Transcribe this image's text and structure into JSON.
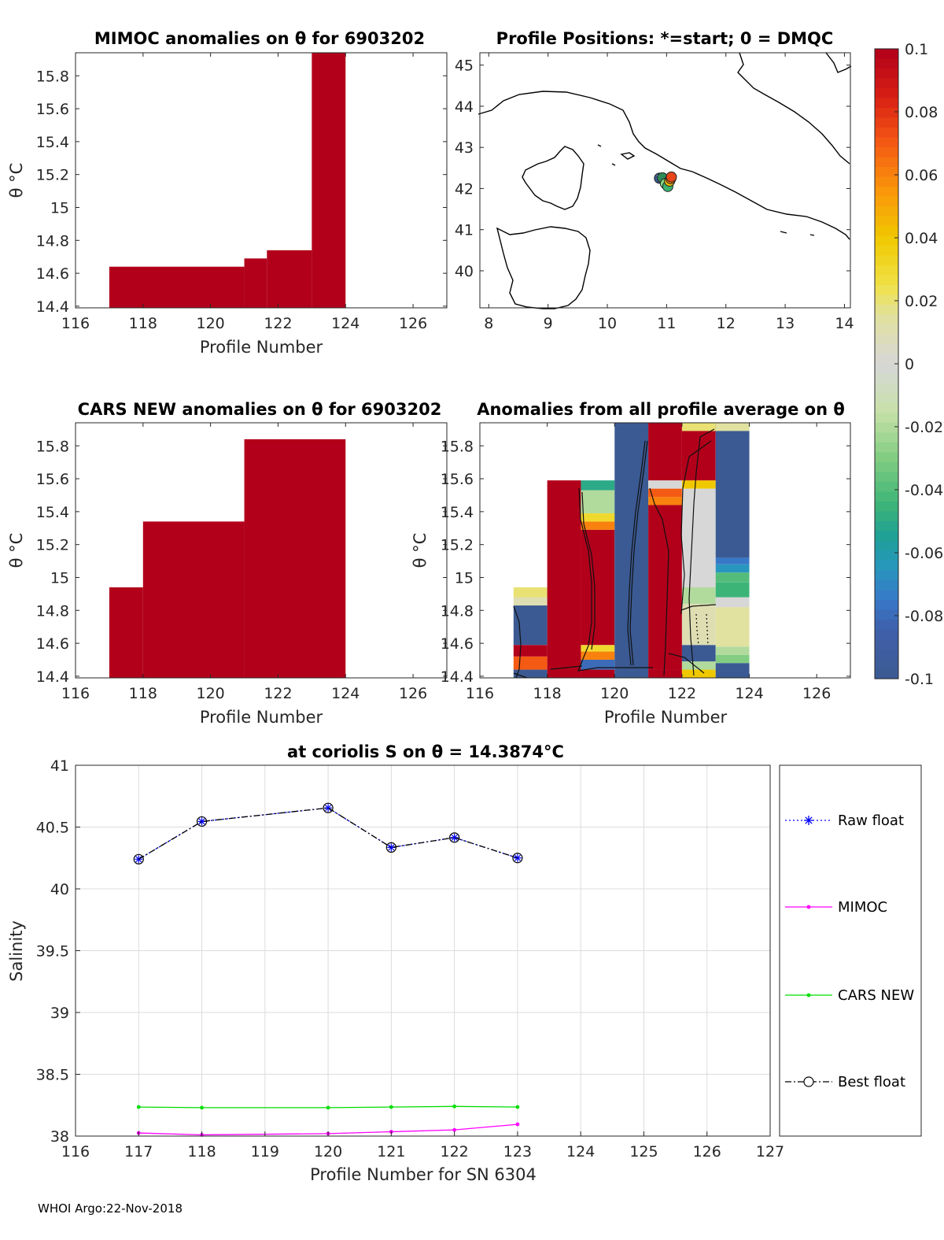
{
  "footer": "WHOI Argo:22-Nov-2018",
  "colors": {
    "raw": "#0000ff",
    "mimoc": "#ff00ff",
    "cars": "#00dd00",
    "best": "#000000",
    "anom_red": "#b2001b",
    "anom_blue": "#3b5a93",
    "coast": "#000000",
    "grid": "#dcdcdc"
  },
  "panels": {
    "mimoc": {
      "title": "MIMOC anomalies on θ  for 6903202",
      "ylabel": "θ °C",
      "xlabel": "Profile Number"
    },
    "positions": {
      "title": "Profile Positions: *=start; 0 = DMQC"
    },
    "cars": {
      "title": "CARS NEW anomalies on θ for 6903202",
      "ylabel": "θ °C",
      "xlabel": "Profile Number"
    },
    "allavg": {
      "title": "Anomalies from all profile average on θ",
      "ylabel": "θ °C",
      "xlabel": "Profile Number"
    },
    "salinity": {
      "title": "at coriolis S on θ = 14.3874°C",
      "ylabel": "Salinity",
      "xlabel": "Profile Number for SN 6304"
    }
  },
  "legend": [
    {
      "label": "Raw float",
      "style": "raw"
    },
    {
      "label": "MIMOC",
      "style": "mimoc"
    },
    {
      "label": "CARS NEW",
      "style": "cars"
    },
    {
      "label": "Best float",
      "style": "best"
    }
  ],
  "chart_data": [
    {
      "id": "mimoc",
      "type": "heatmap",
      "title": "MIMOC anomalies on θ  for 6903202",
      "xlabel": "Profile Number",
      "ylabel": "θ °C",
      "xlim": [
        116,
        127
      ],
      "ylim": [
        14.39,
        15.94
      ],
      "xticks": [
        116,
        118,
        120,
        122,
        124,
        126
      ],
      "yticks": [
        14.4,
        14.6,
        14.8,
        15,
        15.2,
        15.4,
        15.6,
        15.8
      ],
      "cells": [
        {
          "x0": 117,
          "x1": 121,
          "y0": 14.39,
          "y1": 14.64,
          "value": 0.1
        },
        {
          "x0": 121,
          "x1": 121.67,
          "y0": 14.39,
          "y1": 14.69,
          "value": 0.1
        },
        {
          "x0": 121.67,
          "x1": 123,
          "y0": 14.39,
          "y1": 14.74,
          "value": 0.1
        },
        {
          "x0": 123,
          "x1": 124,
          "y0": 14.39,
          "y1": 15.94,
          "value": 0.1
        }
      ]
    },
    {
      "id": "positions",
      "type": "scatter",
      "title": "Profile Positions: *=start; 0 = DMQC",
      "xlim": [
        7.85,
        14.1
      ],
      "ylim": [
        39.1,
        45.3
      ],
      "xticks": [
        8,
        9,
        10,
        11,
        12,
        13,
        14
      ],
      "yticks": [
        40,
        41,
        42,
        43,
        44,
        45
      ],
      "points": [
        {
          "lon": 10.88,
          "lat": 42.25,
          "color": "#3b5a93",
          "marker": "start"
        },
        {
          "lon": 10.93,
          "lat": 42.26,
          "color": "#2e8b57"
        },
        {
          "lon": 10.98,
          "lat": 42.12,
          "color": "#7fd67f"
        },
        {
          "lon": 11.02,
          "lat": 42.05,
          "color": "#3cb371"
        },
        {
          "lon": 11.05,
          "lat": 42.18,
          "color": "#f0c000"
        },
        {
          "lon": 11.07,
          "lat": 42.24,
          "color": "#ff8c00"
        },
        {
          "lon": 11.08,
          "lat": 42.28,
          "color": "#e8461a"
        }
      ]
    },
    {
      "id": "cars",
      "type": "heatmap",
      "title": "CARS NEW anomalies on θ for 6903202",
      "xlabel": "Profile Number",
      "ylabel": "θ °C",
      "xlim": [
        116,
        127
      ],
      "ylim": [
        14.39,
        15.94
      ],
      "xticks": [
        116,
        118,
        120,
        122,
        124,
        126
      ],
      "yticks": [
        14.4,
        14.6,
        14.8,
        15,
        15.2,
        15.4,
        15.6,
        15.8
      ],
      "cells": [
        {
          "x0": 117,
          "x1": 118,
          "y0": 14.39,
          "y1": 14.94,
          "value": 0.1
        },
        {
          "x0": 118,
          "x1": 121,
          "y0": 14.39,
          "y1": 15.34,
          "value": 0.1
        },
        {
          "x0": 121,
          "x1": 124,
          "y0": 14.39,
          "y1": 15.84,
          "value": 0.1
        }
      ]
    },
    {
      "id": "allavg",
      "type": "heatmap",
      "title": "Anomalies from all profile average on θ",
      "xlabel": "Profile Number",
      "ylabel": "θ °C",
      "xlim": [
        116,
        127
      ],
      "ylim": [
        14.39,
        15.94
      ],
      "xticks": [
        116,
        118,
        120,
        122,
        124,
        126
      ],
      "yticks": [
        14.4,
        14.6,
        14.8,
        15,
        15.2,
        15.4,
        15.6,
        15.8
      ],
      "cells": [
        {
          "x0": 117,
          "x1": 118,
          "y0": 14.39,
          "y1": 14.44,
          "value": -0.1
        },
        {
          "x0": 117,
          "x1": 118,
          "y0": 14.44,
          "y1": 14.52,
          "value": 0.07
        },
        {
          "x0": 117,
          "x1": 118,
          "y0": 14.52,
          "y1": 14.59,
          "value": 0.1
        },
        {
          "x0": 117,
          "x1": 118,
          "y0": 14.59,
          "y1": 14.83,
          "value": -0.1
        },
        {
          "x0": 117,
          "x1": 118,
          "y0": 14.83,
          "y1": 14.88,
          "value": 0.01
        },
        {
          "x0": 117,
          "x1": 118,
          "y0": 14.88,
          "y1": 14.94,
          "value": 0.02
        },
        {
          "x0": 118,
          "x1": 119,
          "y0": 14.39,
          "y1": 15.59,
          "value": 0.1
        },
        {
          "x0": 119,
          "x1": 120,
          "y0": 14.39,
          "y1": 14.44,
          "value": 0.1
        },
        {
          "x0": 119,
          "x1": 120,
          "y0": 14.44,
          "y1": 14.5,
          "value": -0.08
        },
        {
          "x0": 119,
          "x1": 120,
          "y0": 14.5,
          "y1": 14.55,
          "value": 0.06
        },
        {
          "x0": 119,
          "x1": 120,
          "y0": 14.55,
          "y1": 14.59,
          "value": 0.03
        },
        {
          "x0": 119,
          "x1": 120,
          "y0": 14.59,
          "y1": 15.29,
          "value": 0.1
        },
        {
          "x0": 119,
          "x1": 120,
          "y0": 15.29,
          "y1": 15.34,
          "value": 0.06
        },
        {
          "x0": 119,
          "x1": 120,
          "y0": 15.34,
          "y1": 15.39,
          "value": 0.03
        },
        {
          "x0": 119,
          "x1": 120,
          "y0": 15.39,
          "y1": 15.53,
          "value": -0.02
        },
        {
          "x0": 119,
          "x1": 120,
          "y0": 15.53,
          "y1": 15.59,
          "value": -0.05
        },
        {
          "x0": 120,
          "x1": 121,
          "y0": 14.39,
          "y1": 15.94,
          "value": -0.1
        },
        {
          "x0": 121,
          "x1": 122,
          "y0": 14.39,
          "y1": 14.44,
          "value": 0.1
        },
        {
          "x0": 121,
          "x1": 122,
          "y0": 14.44,
          "y1": 15.44,
          "value": 0.1
        },
        {
          "x0": 121,
          "x1": 122,
          "y0": 15.44,
          "y1": 15.49,
          "value": 0.06
        },
        {
          "x0": 121,
          "x1": 122,
          "y0": 15.49,
          "y1": 15.54,
          "value": 0.07
        },
        {
          "x0": 121,
          "x1": 122,
          "y0": 15.54,
          "y1": 15.59,
          "value": 0.0
        },
        {
          "x0": 121,
          "x1": 122,
          "y0": 15.59,
          "y1": 15.94,
          "value": 0.1
        },
        {
          "x0": 122,
          "x1": 123,
          "y0": 14.39,
          "y1": 14.44,
          "value": 0.04
        },
        {
          "x0": 122,
          "x1": 123,
          "y0": 14.44,
          "y1": 14.49,
          "value": -0.02
        },
        {
          "x0": 122,
          "x1": 123,
          "y0": 14.49,
          "y1": 14.59,
          "value": -0.1
        },
        {
          "x0": 122,
          "x1": 123,
          "y0": 14.59,
          "y1": 14.84,
          "value": 0.01
        },
        {
          "x0": 122,
          "x1": 123,
          "y0": 14.84,
          "y1": 14.94,
          "value": -0.02
        },
        {
          "x0": 122,
          "x1": 123,
          "y0": 14.94,
          "y1": 15.54,
          "value": 0.0
        },
        {
          "x0": 122,
          "x1": 123,
          "y0": 15.54,
          "y1": 15.59,
          "value": 0.04
        },
        {
          "x0": 122,
          "x1": 123,
          "y0": 15.59,
          "y1": 15.94,
          "value": 0.1
        },
        {
          "x0": 122,
          "x1": 123,
          "y0": 15.89,
          "y1": 15.94,
          "value": 0.02
        },
        {
          "x0": 123,
          "x1": 124,
          "y0": 14.39,
          "y1": 14.48,
          "value": -0.1
        },
        {
          "x0": 123,
          "x1": 124,
          "y0": 14.48,
          "y1": 14.53,
          "value": -0.03
        },
        {
          "x0": 123,
          "x1": 124,
          "y0": 14.53,
          "y1": 14.58,
          "value": -0.02
        },
        {
          "x0": 123,
          "x1": 124,
          "y0": 14.58,
          "y1": 14.82,
          "value": 0.015
        },
        {
          "x0": 123,
          "x1": 124,
          "y0": 14.82,
          "y1": 14.88,
          "value": 0.0
        },
        {
          "x0": 123,
          "x1": 124,
          "y0": 14.88,
          "y1": 14.97,
          "value": -0.045
        },
        {
          "x0": 123,
          "x1": 124,
          "y0": 14.97,
          "y1": 15.03,
          "value": -0.04
        },
        {
          "x0": 123,
          "x1": 124,
          "y0": 15.03,
          "y1": 15.08,
          "value": -0.065
        },
        {
          "x0": 123,
          "x1": 124,
          "y0": 15.08,
          "y1": 15.12,
          "value": -0.075
        },
        {
          "x0": 123,
          "x1": 124,
          "y0": 15.12,
          "y1": 15.94,
          "value": -0.1
        },
        {
          "x0": 123,
          "x1": 124,
          "y0": 15.89,
          "y1": 15.94,
          "value": 0.015
        }
      ]
    },
    {
      "id": "salinity",
      "type": "line",
      "title": "at coriolis S on θ = 14.3874°C",
      "xlabel": "Profile Number for SN 6304",
      "ylabel": "Salinity",
      "xlim": [
        116,
        127
      ],
      "ylim": [
        38,
        41
      ],
      "xticks": [
        116,
        117,
        118,
        119,
        120,
        121,
        122,
        123,
        124,
        125,
        126,
        127
      ],
      "yticks": [
        38,
        38.5,
        39,
        39.5,
        40,
        40.5,
        41
      ],
      "grid": true,
      "x": [
        117,
        118,
        120,
        121,
        122,
        123
      ],
      "series": [
        {
          "name": "Raw float",
          "values": [
            40.24,
            40.545,
            40.655,
            40.335,
            40.415,
            40.25
          ]
        },
        {
          "name": "MIMOC",
          "values": [
            38.025,
            38.01,
            38.02,
            38.035,
            38.05,
            38.095
          ]
        },
        {
          "name": "CARS NEW",
          "values": [
            38.235,
            38.23,
            38.23,
            38.235,
            38.24,
            38.235
          ]
        },
        {
          "name": "Best float",
          "values": [
            40.24,
            40.545,
            40.655,
            40.335,
            40.415,
            40.25
          ]
        }
      ]
    },
    {
      "id": "colorbar",
      "type": "heatmap",
      "title": "",
      "clim": [
        -0.1,
        0.1
      ],
      "tick_values": [
        0.1,
        0.08,
        0.06,
        0.04,
        0.02,
        0,
        -0.02,
        -0.04,
        -0.06,
        -0.08,
        -0.1
      ],
      "tick_labels": [
        "0.1",
        "0.08",
        "0.06",
        "0.04",
        "0.02",
        "0",
        "-0.02",
        "-0.04",
        "-0.06",
        "-0.08",
        "-0.1"
      ]
    }
  ]
}
